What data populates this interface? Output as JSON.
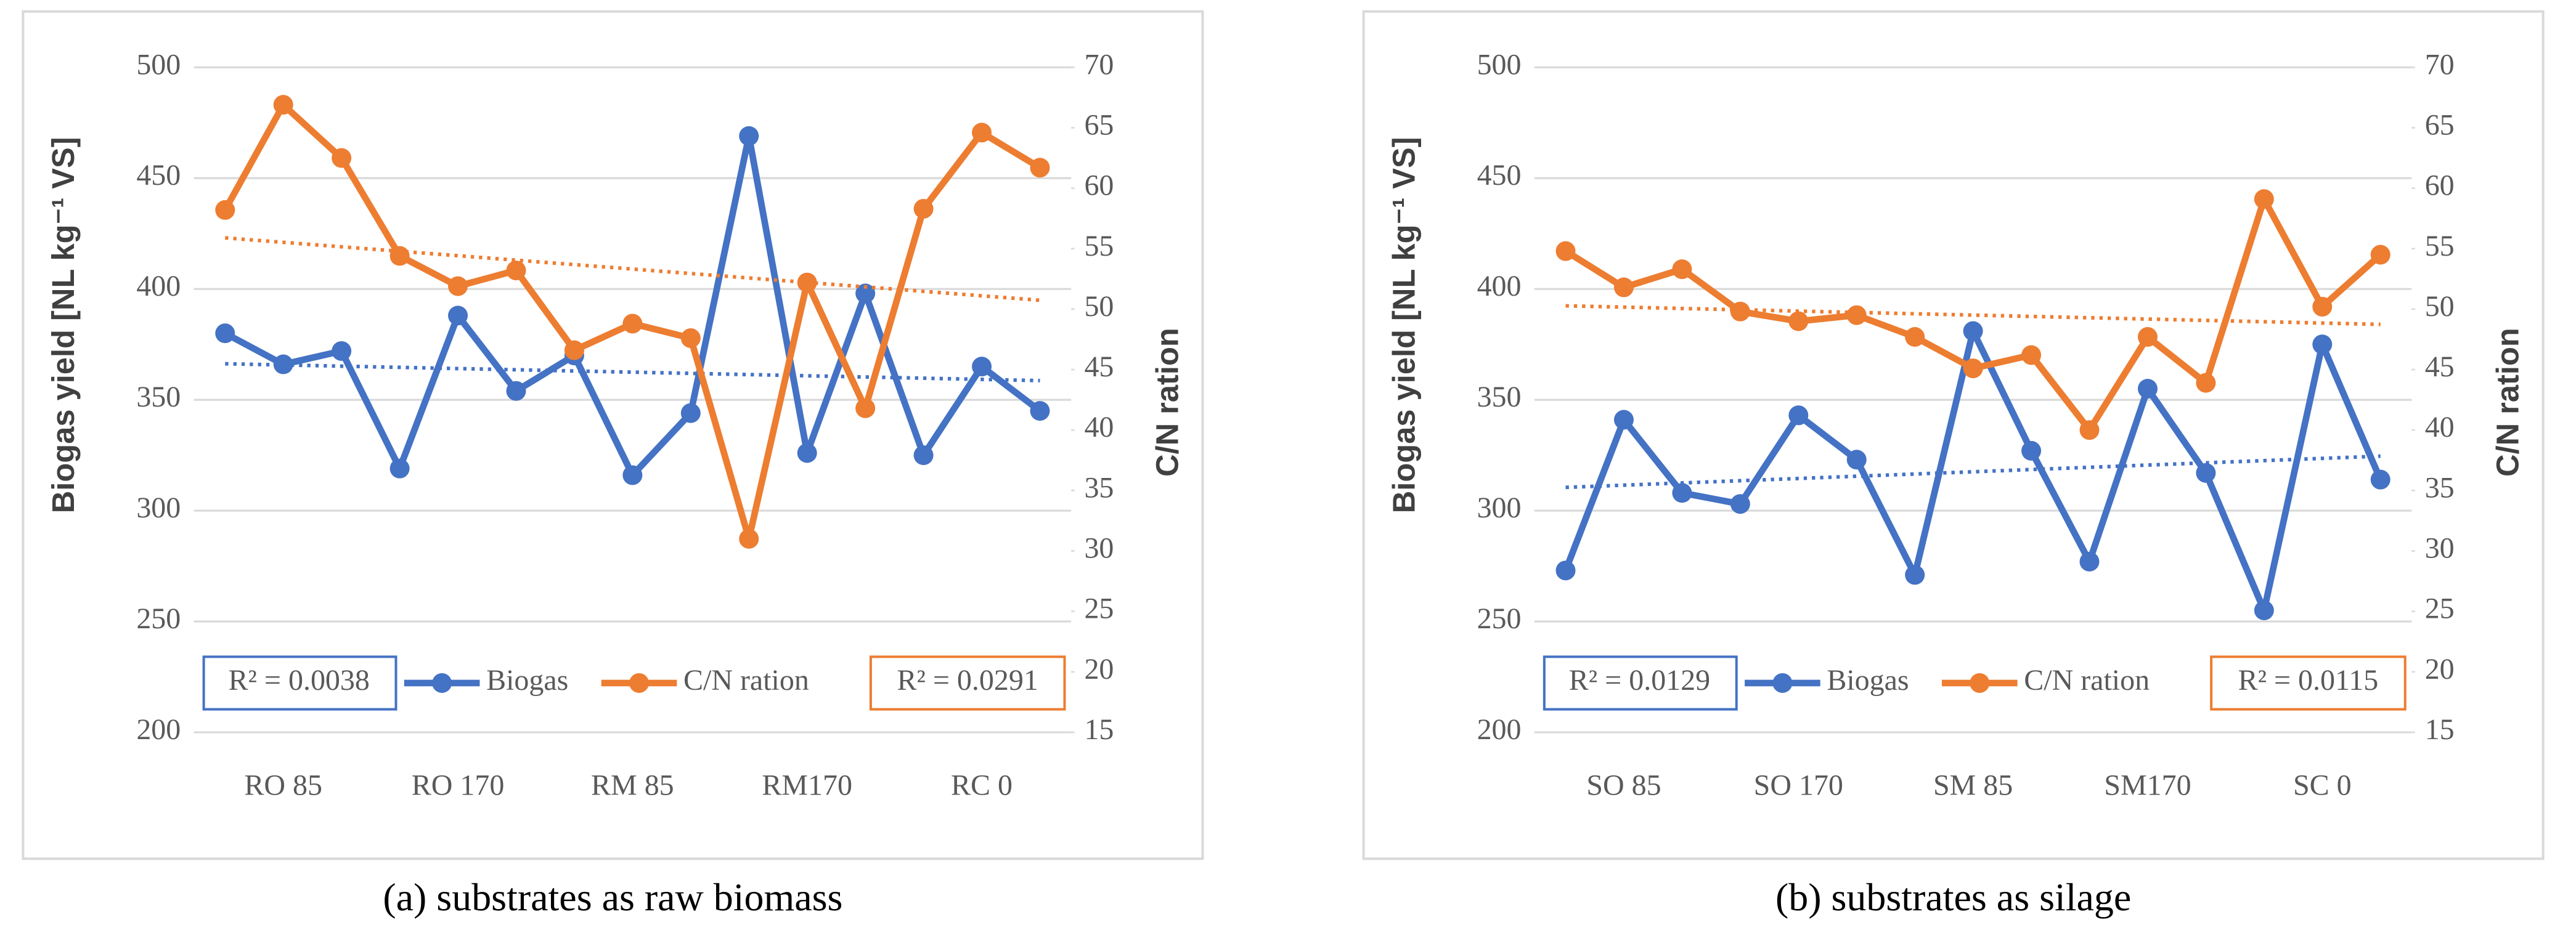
{
  "chart_data": [
    {
      "type": "line",
      "caption": "(a) substrates as raw biomass",
      "y_label": "Biogas yield [NL kg⁻¹ VS]",
      "y2_label": "C/N ration",
      "categories": [
        null,
        "RO  85",
        null,
        null,
        "RO 170",
        null,
        null,
        "RM  85",
        null,
        null,
        "RM170",
        null,
        null,
        "RC   0",
        null
      ],
      "series": [
        {
          "name": "Biogas",
          "color": "#4472c4",
          "axis": "y",
          "trend_label": "R² = 0.0038",
          "values": [
            380,
            366,
            372,
            319,
            388,
            354,
            370,
            316,
            344,
            469,
            326,
            398,
            325,
            365,
            345
          ]
        },
        {
          "name": "C/N ration",
          "color": "#ed7d31",
          "axis": "y2",
          "trend_label": "R² = 0.0291",
          "values": [
            58.2,
            66.9,
            62.5,
            54.4,
            51.9,
            53.2,
            46.6,
            48.8,
            47.6,
            31.0,
            52.2,
            41.8,
            58.3,
            64.6,
            61.7
          ]
        }
      ],
      "ylim": [
        200,
        500
      ],
      "yticks": [
        200,
        250,
        300,
        350,
        400,
        450,
        500
      ],
      "y2lim": [
        15,
        70
      ],
      "y2ticks": [
        15,
        20,
        25,
        30,
        35,
        40,
        45,
        50,
        55,
        60,
        65,
        70
      ],
      "grid": true,
      "trendline": true
    },
    {
      "type": "line",
      "caption": "(b) substrates as silage",
      "y_label": "Biogas yield [NL kg⁻¹ VS]",
      "y2_label": "C/N ration",
      "categories": [
        null,
        "SO  85",
        null,
        null,
        "SO  170",
        null,
        null,
        "SM  85",
        null,
        null,
        "SM170",
        null,
        null,
        "SC   0",
        null
      ],
      "series": [
        {
          "name": "Biogas",
          "color": "#4472c4",
          "axis": "y",
          "trend_label": "R² = 0.0129",
          "values": [
            273,
            341,
            308,
            303,
            343,
            323,
            271,
            381,
            327,
            277,
            355,
            317,
            255,
            375,
            314
          ]
        },
        {
          "name": "C/N ration",
          "color": "#ed7d31",
          "axis": "y2",
          "trend_label": "R² = 0.0115",
          "values": [
            54.8,
            51.8,
            53.3,
            49.8,
            49.0,
            49.5,
            47.7,
            45.1,
            46.2,
            40.0,
            47.7,
            43.9,
            59.1,
            50.2,
            54.5
          ]
        }
      ],
      "ylim": [
        200,
        500
      ],
      "yticks": [
        200,
        250,
        300,
        350,
        400,
        450,
        500
      ],
      "y2lim": [
        15,
        70
      ],
      "y2ticks": [
        15,
        20,
        25,
        30,
        35,
        40,
        45,
        50,
        55,
        60,
        65,
        70
      ],
      "grid": true,
      "trendline": true
    }
  ]
}
